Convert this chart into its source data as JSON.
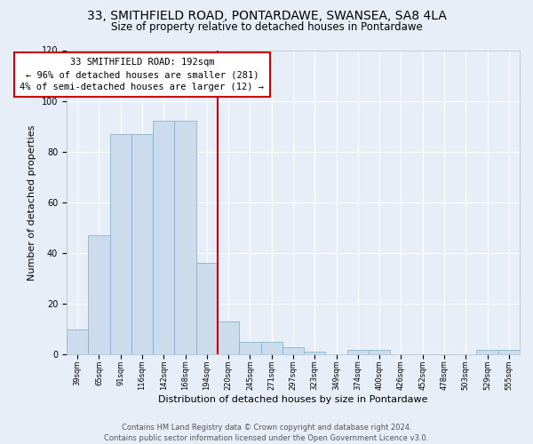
{
  "title1": "33, SMITHFIELD ROAD, PONTARDAWE, SWANSEA, SA8 4LA",
  "title2": "Size of property relative to detached houses in Pontardawe",
  "xlabel": "Distribution of detached houses by size in Pontardawe",
  "ylabel": "Number of detached properties",
  "bin_labels": [
    "39sqm",
    "65sqm",
    "91sqm",
    "116sqm",
    "142sqm",
    "168sqm",
    "194sqm",
    "220sqm",
    "245sqm",
    "271sqm",
    "297sqm",
    "323sqm",
    "349sqm",
    "374sqm",
    "400sqm",
    "426sqm",
    "452sqm",
    "478sqm",
    "503sqm",
    "529sqm",
    "555sqm"
  ],
  "bar_heights": [
    10,
    47,
    87,
    87,
    92,
    92,
    36,
    13,
    5,
    5,
    3,
    1,
    0,
    2,
    2,
    0,
    0,
    0,
    0,
    2,
    2
  ],
  "bar_color": "#ccdcec",
  "bar_edge_color": "#7aaac8",
  "vline_color": "#cc0000",
  "vline_bin": 6,
  "annotation_text": "33 SMITHFIELD ROAD: 192sqm\n← 96% of detached houses are smaller (281)\n4% of semi-detached houses are larger (12) →",
  "ylim": [
    0,
    120
  ],
  "yticks": [
    0,
    20,
    40,
    60,
    80,
    100,
    120
  ],
  "background_color": "#e8eef8",
  "grid_color": "#ffffff",
  "footnote": "Contains HM Land Registry data © Crown copyright and database right 2024.\nContains public sector information licensed under the Open Government Licence v3.0.",
  "title1_fontsize": 10,
  "title2_fontsize": 8.5,
  "annot_fontsize": 7.5,
  "xlabel_fontsize": 8,
  "ylabel_fontsize": 8,
  "footnote_fontsize": 6,
  "tick_fontsize": 6
}
